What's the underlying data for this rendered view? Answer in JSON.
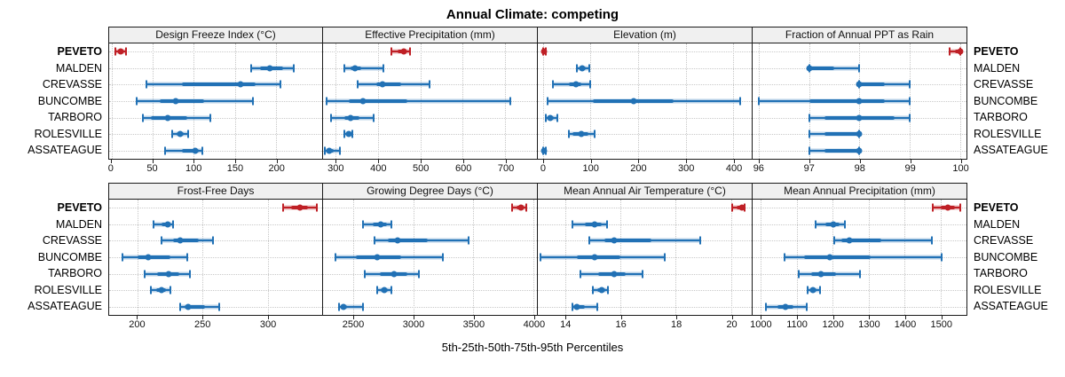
{
  "title": "Annual Climate: competing",
  "xlabel": "5th-25th-50th-75th-95th Percentiles",
  "series": [
    "PEVETO",
    "MALDEN",
    "CREVASSE",
    "BUNCOMBE",
    "TARBORO",
    "ROLESVILLE",
    "ASSATEAGUE"
  ],
  "highlight_series": "PEVETO",
  "colors": {
    "series_default": "#2171b5",
    "series_default_halo": "rgba(33,113,181,0.32)",
    "series_highlight": "#bf2026",
    "series_highlight_halo": "rgba(191,32,38,0.35)",
    "strip_bg": "#f0f0f0",
    "panel_border": "#1a1a1a",
    "grid": "#c6c6c6"
  },
  "chart_data": {
    "type": "scatter",
    "subtype": "percentile-dot-whisker-trellis",
    "title": "Annual Climate: competing",
    "xlabel": "5th-25th-50th-75th-95th Percentiles",
    "legend_position": "none",
    "grid": "dotted",
    "percentile_labels": [
      "p5",
      "p25",
      "p50",
      "p75",
      "p95"
    ],
    "categories": [
      "PEVETO",
      "MALDEN",
      "CREVASSE",
      "BUNCOMBE",
      "TARBORO",
      "ROLESVILLE",
      "ASSATEAGUE"
    ],
    "panels": [
      {
        "title": "Design Freeze Index (°C)",
        "xlim": [
          -3,
          256
        ],
        "ticks": [
          0,
          50,
          100,
          150,
          200
        ],
        "values": {
          "PEVETO": [
            5,
            8,
            11,
            14,
            17
          ],
          "MALDEN": [
            170,
            180,
            192,
            208,
            222
          ],
          "CREVASSE": [
            42,
            85,
            157,
            175,
            205
          ],
          "BUNCOMBE": [
            30,
            58,
            78,
            113,
            172
          ],
          "TARBORO": [
            38,
            48,
            68,
            92,
            120
          ],
          "ROLESVILLE": [
            74,
            79,
            83,
            88,
            93
          ],
          "ASSATEAGUE": [
            65,
            85,
            102,
            106,
            110
          ]
        }
      },
      {
        "title": "Effective Precipitation (mm)",
        "xlim": [
          270,
          775
        ],
        "ticks": [
          300,
          400,
          500,
          600,
          700
        ],
        "values": {
          "PEVETO": [
            432,
            445,
            460,
            468,
            475
          ],
          "MALDEN": [
            320,
            335,
            345,
            360,
            412
          ],
          "CREVASSE": [
            352,
            395,
            410,
            455,
            522
          ],
          "BUNCOMBE": [
            278,
            330,
            365,
            470,
            712
          ],
          "TARBORO": [
            288,
            320,
            335,
            355,
            390
          ],
          "ROLESVILLE": [
            320,
            326,
            330,
            335,
            340
          ],
          "ASSATEAGUE": [
            275,
            280,
            285,
            295,
            310
          ]
        }
      },
      {
        "title": "Elevation (m)",
        "xlim": [
          -11,
          439
        ],
        "ticks": [
          0,
          100,
          200,
          300,
          400
        ],
        "values": {
          "PEVETO": [
            0,
            1,
            2,
            3,
            5
          ],
          "MALDEN": [
            72,
            78,
            82,
            90,
            98
          ],
          "CREVASSE": [
            20,
            55,
            70,
            80,
            100
          ],
          "BUNCOMBE": [
            10,
            105,
            190,
            275,
            415
          ],
          "TARBORO": [
            5,
            10,
            15,
            22,
            30
          ],
          "ROLESVILLE": [
            55,
            62,
            80,
            95,
            108
          ],
          "ASSATEAGUE": [
            0,
            1,
            2,
            3,
            5
          ]
        }
      },
      {
        "title": "Fraction of Annual PPT as Rain",
        "xlim": [
          95.88,
          100.13
        ],
        "ticks": [
          96,
          97,
          98,
          99,
          100
        ],
        "values": {
          "PEVETO": [
            99.8,
            99.9,
            100,
            100,
            100
          ],
          "MALDEN": [
            97,
            97,
            97,
            97.5,
            98
          ],
          "CREVASSE": [
            98,
            98,
            98,
            98.5,
            99
          ],
          "BUNCOMBE": [
            96,
            97,
            98,
            98.5,
            99
          ],
          "TARBORO": [
            97,
            97.3,
            98,
            98.7,
            99
          ],
          "ROLESVILLE": [
            97,
            97.3,
            98,
            98,
            98
          ],
          "ASSATEAGUE": [
            97,
            97.3,
            98,
            98,
            98
          ]
        }
      },
      {
        "title": "Frost-Free Days",
        "xlim": [
          178,
          342
        ],
        "ticks": [
          200,
          250,
          300
        ],
        "values": {
          "PEVETO": [
            312,
            318,
            325,
            331,
            338
          ],
          "MALDEN": [
            212,
            218,
            223,
            225,
            227
          ],
          "CREVASSE": [
            218,
            227,
            233,
            247,
            258
          ],
          "BUNCOMBE": [
            188,
            200,
            208,
            225,
            238
          ],
          "TARBORO": [
            205,
            215,
            224,
            232,
            240
          ],
          "ROLESVILLE": [
            210,
            214,
            218,
            222,
            225
          ],
          "ASSATEAGUE": [
            233,
            236,
            239,
            252,
            263
          ]
        }
      },
      {
        "title": "Growing Degree Days (°C)",
        "xlim": [
          2250,
          4030
        ],
        "ticks": [
          2500,
          3000,
          3500,
          4000
        ],
        "values": {
          "PEVETO": [
            3820,
            3860,
            3900,
            3920,
            3940
          ],
          "MALDEN": [
            2580,
            2660,
            2730,
            2780,
            2820
          ],
          "CREVASSE": [
            2680,
            2790,
            2870,
            3120,
            3460
          ],
          "BUNCOMBE": [
            2350,
            2520,
            2700,
            2900,
            3250
          ],
          "TARBORO": [
            2600,
            2720,
            2840,
            2950,
            3050
          ],
          "ROLESVILLE": [
            2700,
            2730,
            2760,
            2790,
            2820
          ],
          "ASSATEAGUE": [
            2380,
            2400,
            2420,
            2450,
            2580
          ]
        }
      },
      {
        "title": "Mean Annual Air Temperature (°C)",
        "xlim": [
          13.0,
          20.75
        ],
        "ticks": [
          14,
          16,
          18,
          20
        ],
        "values": {
          "PEVETO": [
            20.05,
            20.2,
            20.4,
            20.45,
            20.5
          ],
          "MALDEN": [
            14.25,
            14.7,
            15.05,
            15.3,
            15.5
          ],
          "CREVASSE": [
            14.85,
            15.4,
            15.75,
            17.1,
            18.9
          ],
          "BUNCOMBE": [
            13.1,
            14.4,
            15.05,
            16.0,
            17.6
          ],
          "TARBORO": [
            14.55,
            15.2,
            15.75,
            16.2,
            16.8
          ],
          "ROLESVILLE": [
            15.0,
            15.15,
            15.3,
            15.45,
            15.55
          ],
          "ASSATEAGUE": [
            14.25,
            14.3,
            14.4,
            14.7,
            15.15
          ]
        }
      },
      {
        "title": "Mean Annual Precipitation (mm)",
        "xlim": [
          977,
          1572
        ],
        "ticks": [
          1000,
          1100,
          1200,
          1300,
          1400,
          1500
        ],
        "values": {
          "PEVETO": [
            1478,
            1500,
            1520,
            1540,
            1555
          ],
          "MALDEN": [
            1152,
            1180,
            1202,
            1220,
            1235
          ],
          "CREVASSE": [
            1205,
            1225,
            1245,
            1335,
            1475
          ],
          "BUNCOMBE": [
            1065,
            1120,
            1192,
            1305,
            1502
          ],
          "TARBORO": [
            1105,
            1140,
            1168,
            1210,
            1275
          ],
          "ROLESVILLE": [
            1130,
            1140,
            1145,
            1155,
            1165
          ],
          "ASSATEAGUE": [
            1015,
            1045,
            1068,
            1090,
            1128
          ]
        }
      }
    ]
  }
}
